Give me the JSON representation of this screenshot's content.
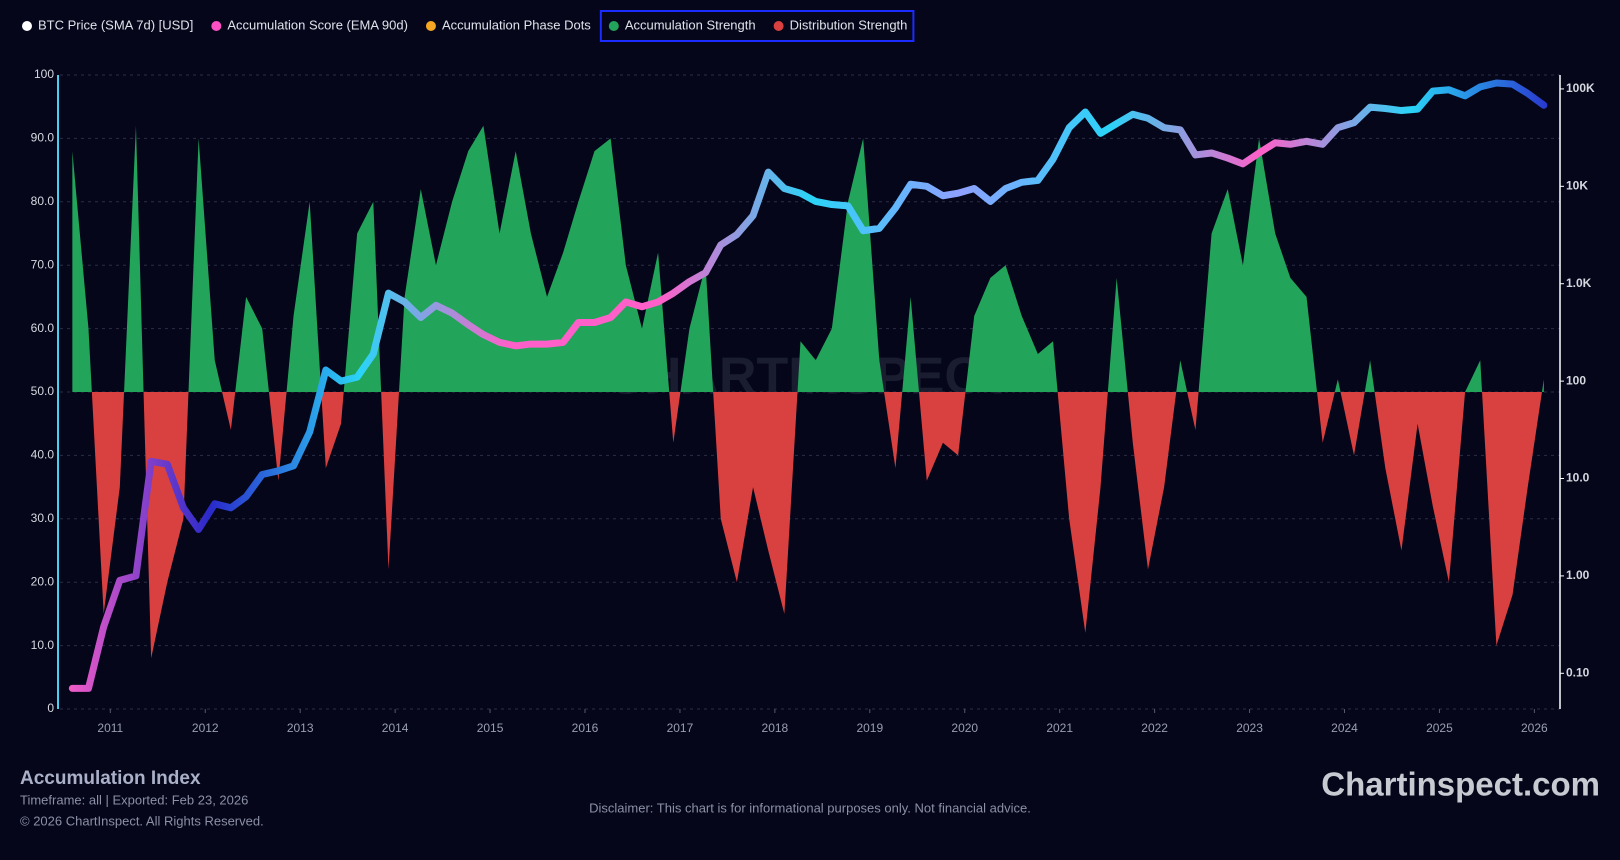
{
  "chart_data": {
    "type": "area",
    "title": "Accumulation Index",
    "subtitle": "Timeframe: all | Exported: Feb 23, 2026",
    "copyright": "© 2026 ChartInspect. All Rights Reserved.",
    "disclaimer": "Disclaimer: This chart is for informational purposes only. Not financial advice.",
    "logo": "Chartinspect.com",
    "watermark": "CHARTINSPECT",
    "legend": [
      {
        "name": "BTC Price (SMA 7d) [USD]",
        "color": "#ffffff"
      },
      {
        "name": "Accumulation Score (EMA 90d)",
        "color": "#ff4fc4"
      },
      {
        "name": "Accumulation Phase Dots",
        "color": "#f5a623"
      },
      {
        "name": "Accumulation Strength",
        "color": "#22a45a"
      },
      {
        "name": "Distribution Strength",
        "color": "#d94040"
      }
    ],
    "legend_highlight": [
      3,
      4
    ],
    "x": [
      2010.6,
      2010.77,
      2010.93,
      2011.1,
      2011.27,
      2011.43,
      2011.6,
      2011.77,
      2011.93,
      2012.1,
      2012.27,
      2012.43,
      2012.6,
      2012.77,
      2012.93,
      2013.1,
      2013.27,
      2013.43,
      2013.6,
      2013.77,
      2013.93,
      2014.1,
      2014.27,
      2014.43,
      2014.6,
      2014.77,
      2014.93,
      2015.1,
      2015.27,
      2015.43,
      2015.6,
      2015.77,
      2015.93,
      2016.1,
      2016.27,
      2016.43,
      2016.6,
      2016.77,
      2016.93,
      2017.1,
      2017.27,
      2017.43,
      2017.6,
      2017.77,
      2017.93,
      2018.1,
      2018.27,
      2018.43,
      2018.6,
      2018.77,
      2018.93,
      2019.1,
      2019.27,
      2019.43,
      2019.6,
      2019.77,
      2019.93,
      2020.1,
      2020.27,
      2020.43,
      2020.6,
      2020.77,
      2020.93,
      2021.1,
      2021.27,
      2021.43,
      2021.6,
      2021.77,
      2021.93,
      2022.1,
      2022.27,
      2022.43,
      2022.6,
      2022.77,
      2022.93,
      2023.1,
      2023.27,
      2023.43,
      2023.6,
      2023.77,
      2023.93,
      2024.1,
      2024.27,
      2024.43,
      2024.6,
      2024.77,
      2024.93,
      2025.1,
      2025.27,
      2025.43,
      2025.6,
      2025.77,
      2025.93,
      2026.1
    ],
    "strength": {
      "baseline": 50,
      "values": [
        88,
        60,
        15,
        35,
        92,
        8,
        20,
        30,
        90,
        55,
        44,
        65,
        60,
        36,
        62,
        80,
        38,
        45,
        75,
        80,
        22,
        65,
        82,
        70,
        80,
        88,
        92,
        75,
        88,
        75,
        65,
        72,
        80,
        88,
        90,
        70,
        60,
        72,
        42,
        60,
        70,
        30,
        20,
        35,
        25,
        15,
        58,
        55,
        60,
        80,
        90,
        55,
        38,
        65,
        36,
        42,
        40,
        62,
        68,
        70,
        62,
        56,
        58,
        30,
        12,
        35,
        68,
        42,
        22,
        35,
        55,
        44,
        75,
        82,
        70,
        90,
        75,
        68,
        65,
        42,
        52,
        40,
        55,
        38,
        25,
        45,
        32,
        20,
        50,
        55,
        10,
        18,
        35,
        52
      ]
    },
    "price": {
      "axis": "y2",
      "color": "#2ad4f7",
      "colors": [
        "#ff5fc8",
        "#2a2acb",
        "#2ad4f7",
        "#ff5fc8",
        "#ff5fc8",
        "#2ad4f7",
        "#8fa0ff",
        "#2ad4f7",
        "#ff5fc8",
        "#2ad4f7",
        "#2a2acb"
      ],
      "values": [
        0.07,
        0.07,
        0.3,
        0.9,
        1.0,
        15,
        14,
        5,
        3,
        5.5,
        5,
        6.5,
        11,
        12,
        13.5,
        30,
        130,
        100,
        110,
        190,
        800,
        650,
        450,
        600,
        500,
        380,
        300,
        250,
        230,
        240,
        240,
        250,
        400,
        400,
        450,
        650,
        580,
        650,
        800,
        1050,
        1300,
        2500,
        3200,
        5000,
        14000,
        9500,
        8500,
        7000,
        6500,
        6300,
        3500,
        3700,
        6000,
        10500,
        10000,
        8000,
        8500,
        9500,
        7000,
        9500,
        11000,
        11500,
        19000,
        40000,
        58000,
        35000,
        44000,
        55000,
        50000,
        40000,
        38000,
        21000,
        22000,
        19500,
        17000,
        22000,
        28000,
        27000,
        29000,
        27000,
        40000,
        45000,
        65000,
        63000,
        60000,
        62000,
        95000,
        98000,
        85000,
        105000,
        115000,
        112000,
        90000,
        68000
      ]
    },
    "xlim": [
      2010.47,
      2026.27
    ],
    "xticks": [
      2011,
      2012,
      2013,
      2014,
      2015,
      2016,
      2017,
      2018,
      2019,
      2020,
      2021,
      2022,
      2023,
      2024,
      2025,
      2026
    ],
    "ylim": [
      0,
      100
    ],
    "yticks": [
      0,
      {
        "value": 10,
        "label": "10.0"
      },
      {
        "value": 20,
        "label": "20.0"
      },
      {
        "value": 30,
        "label": "30.0"
      },
      {
        "value": 40,
        "label": "40.0"
      },
      {
        "value": 50,
        "label": "50.0"
      },
      {
        "value": 60,
        "label": "60.0"
      },
      {
        "value": 70,
        "label": "70.0"
      },
      {
        "value": 80,
        "label": "80.0"
      },
      {
        "value": 90,
        "label": "90.0"
      },
      100
    ],
    "y2lim": [
      0.043,
      139000
    ],
    "y2log": true,
    "y2ticks": [
      {
        "value": 0.1,
        "label": "0.10"
      },
      {
        "value": 1,
        "label": "1.00"
      },
      {
        "value": 10,
        "label": "10.0"
      },
      100,
      {
        "value": 1000,
        "label": "1.0K"
      },
      {
        "value": 10000,
        "label": "10K"
      },
      {
        "value": 100000,
        "label": "100K"
      }
    ],
    "grid": true
  }
}
